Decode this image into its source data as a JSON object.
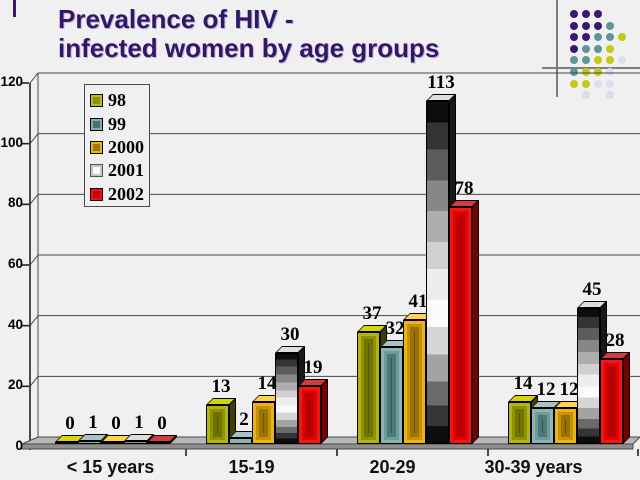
{
  "title": {
    "line1": "Prevalence of HIV -",
    "line2": "infected women by age groups"
  },
  "colors": {
    "title": "#31166b",
    "background": "#f0f0f0",
    "grid": "#474747",
    "floor": "#b7b7b7",
    "floor_front": "#8e8e8e",
    "series": {
      "98": "#b2b400",
      "99": "#5e9595",
      "2000": "#e8ac00",
      "2001": "#f2f2f2",
      "2002": "#e00000"
    }
  },
  "chart_data": {
    "type": "bar",
    "title": "Prevalence of HIV - infected women by age groups",
    "categories": [
      "< 15 years",
      "15-19",
      "20-29",
      "30-39 years"
    ],
    "series": [
      {
        "name": "98",
        "values": [
          0,
          13,
          37,
          14
        ]
      },
      {
        "name": "99",
        "values": [
          1,
          2,
          32,
          12
        ]
      },
      {
        "name": "2000",
        "values": [
          0,
          14,
          41,
          12
        ]
      },
      {
        "name": "2001",
        "values": [
          1,
          30,
          113,
          45
        ]
      },
      {
        "name": "2002",
        "values": [
          0,
          19,
          78,
          28
        ]
      }
    ],
    "xlabel": "",
    "ylabel": "",
    "ylim": [
      0,
      120
    ],
    "yticks": [
      0,
      20,
      40,
      60,
      80,
      100,
      120
    ],
    "grid": true,
    "bar_labels": true,
    "legend_position": "upper-left"
  },
  "decoration": {
    "dot_rows": [
      "ppp__",
      "pppt_",
      "pptty",
      "ptty_",
      "ttyyl",
      "tyyl_",
      "yyll_",
      "_l_l_"
    ],
    "palette": {
      "p": "#3a1a71",
      "t": "#5e9596",
      "y": "#c2cb11",
      "l": "#dadeed"
    }
  }
}
